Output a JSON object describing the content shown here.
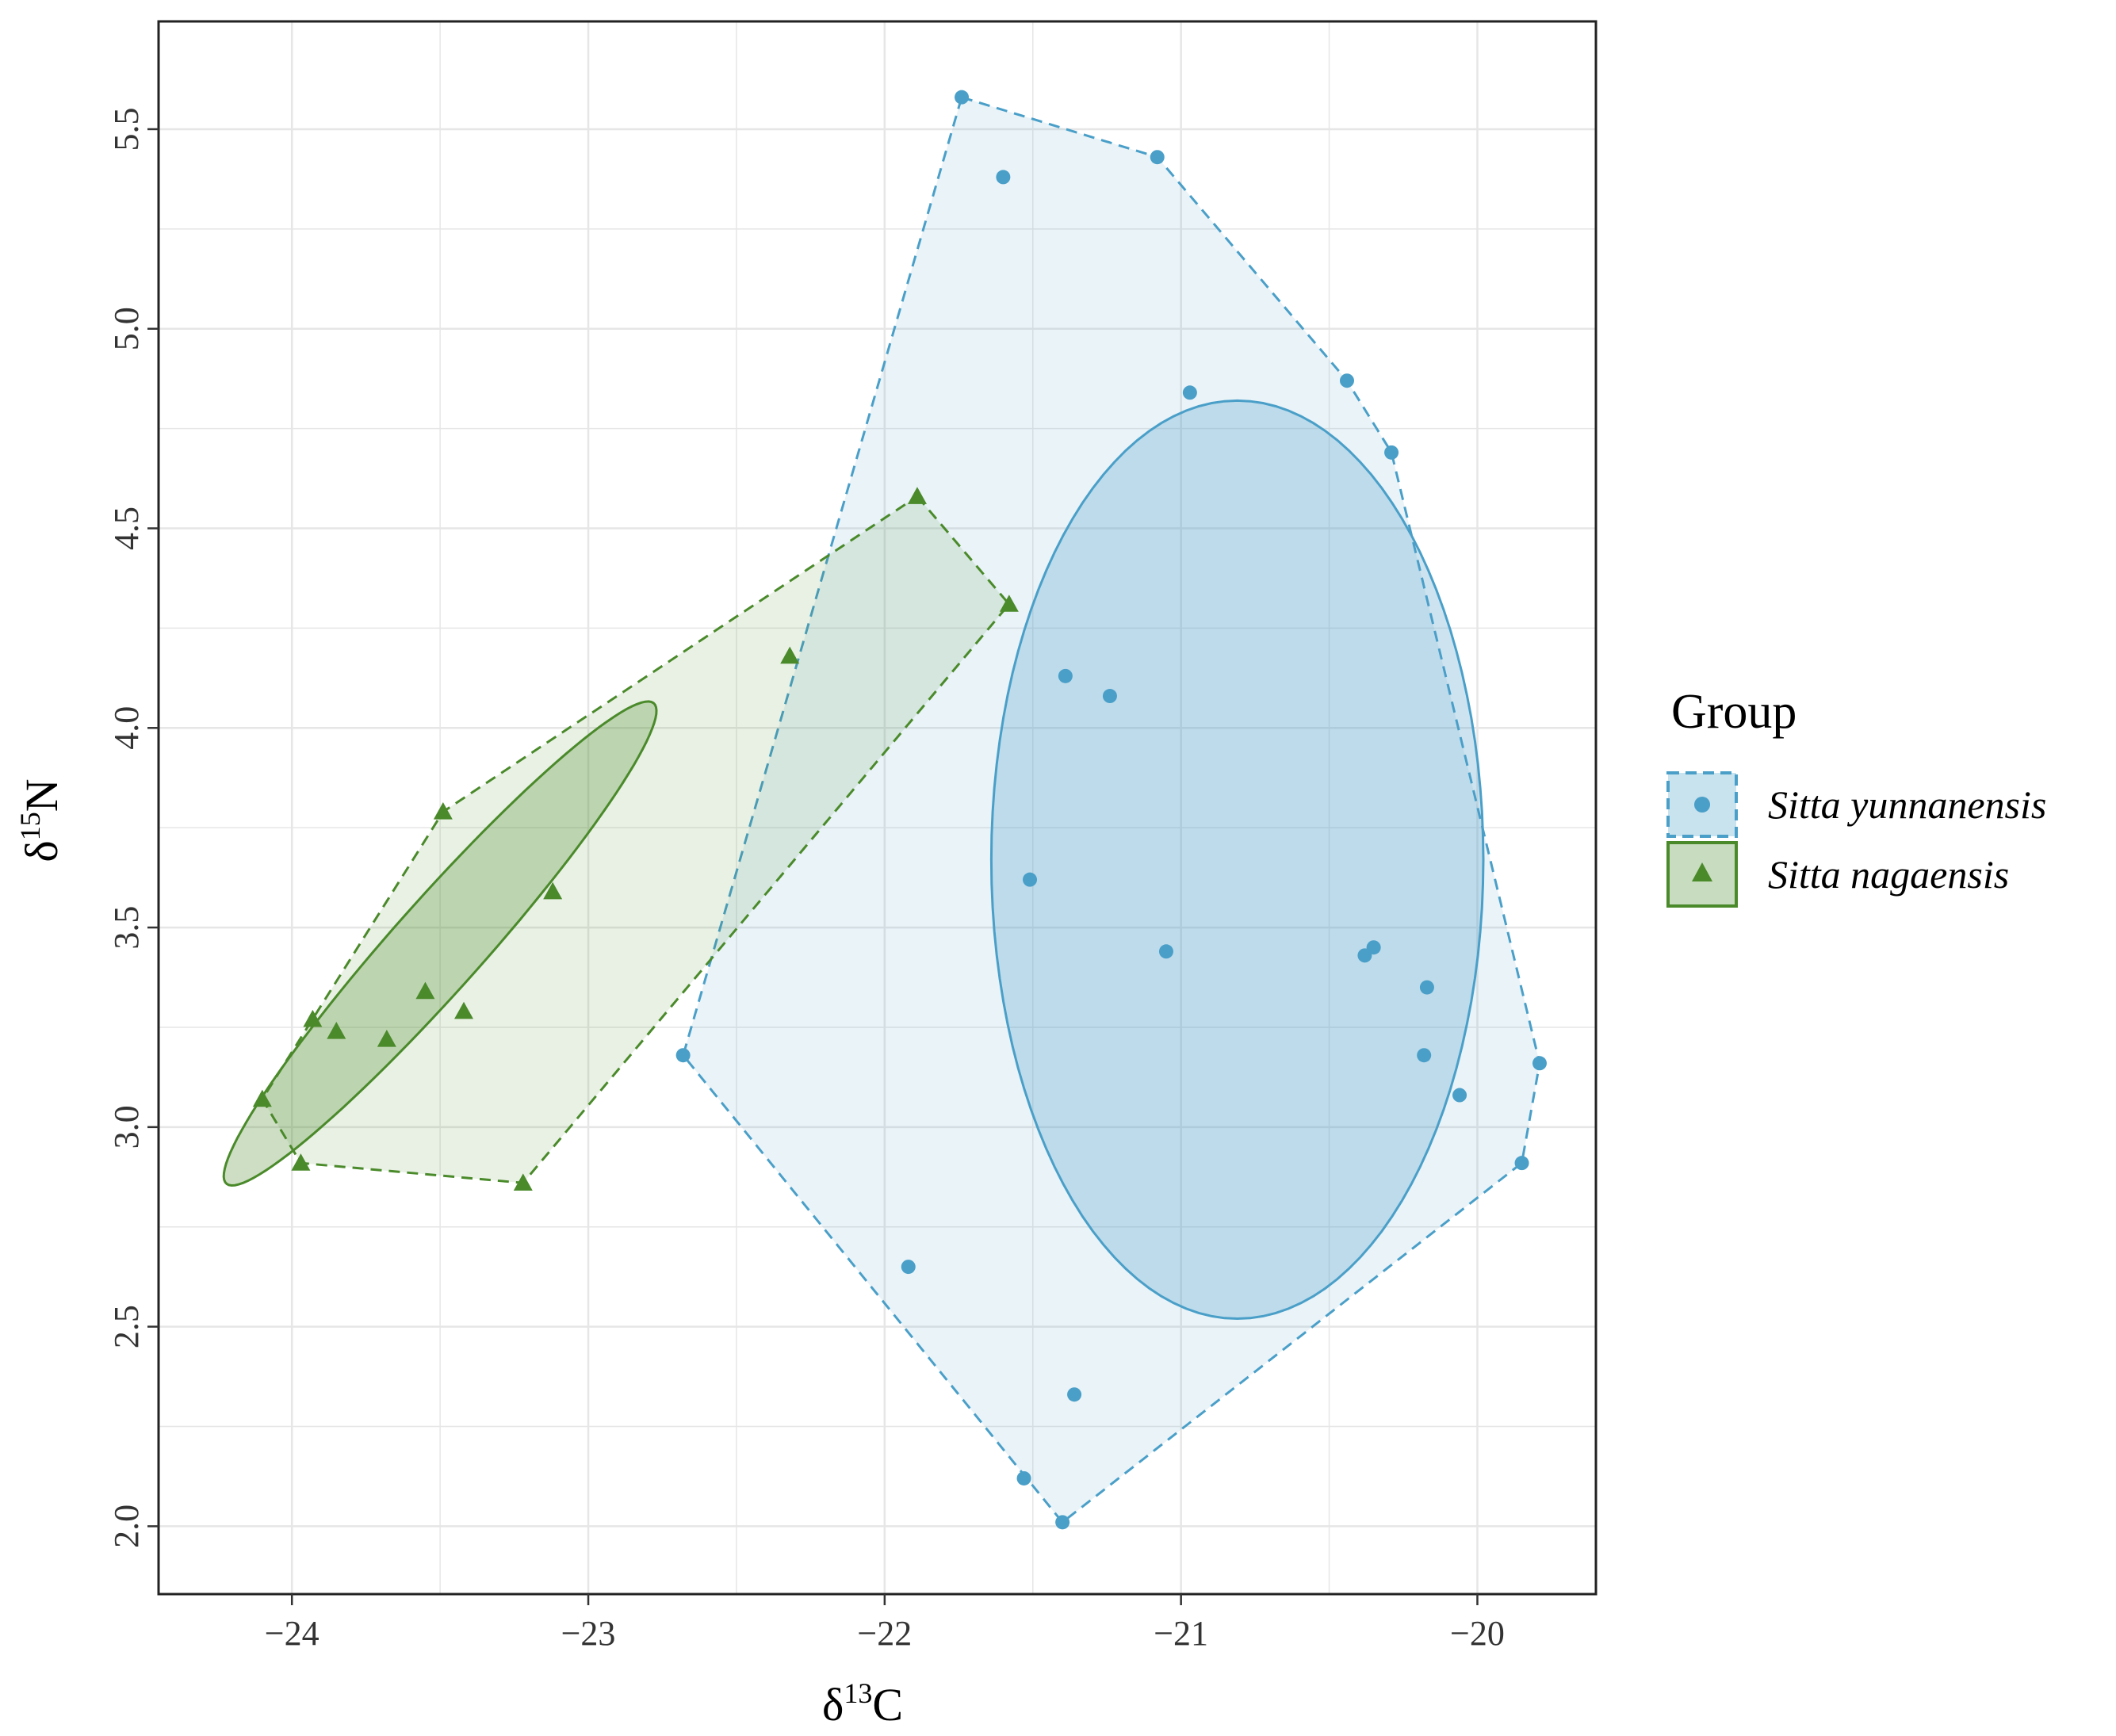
{
  "chart_data": {
    "type": "scatter",
    "title": "",
    "xlabel": {
      "symbol": "δ",
      "sup": "13",
      "element": "C"
    },
    "ylabel": {
      "symbol": "δ",
      "sup": "15",
      "element": "N"
    },
    "xlim": [
      -24.45,
      -19.6
    ],
    "ylim": [
      1.83,
      5.77
    ],
    "xticks": [
      -24,
      -23,
      -22,
      -21,
      -20
    ],
    "xtick_labels": [
      "−24",
      "−23",
      "−22",
      "−21",
      "−20"
    ],
    "yticks": [
      2.0,
      2.5,
      3.0,
      3.5,
      4.0,
      4.5,
      5.0,
      5.5
    ],
    "ytick_labels": [
      "2.0",
      "2.5",
      "3.0",
      "3.5",
      "4.0",
      "4.5",
      "5.0",
      "5.5"
    ],
    "grid": true,
    "legend": {
      "title": "Group",
      "position": "right"
    },
    "series": [
      {
        "name": "Sitta yunnanensis",
        "marker": "circle",
        "color": "#4a9fc8",
        "points": [
          {
            "x": -21.74,
            "y": 5.58
          },
          {
            "x": -21.6,
            "y": 5.38
          },
          {
            "x": -21.08,
            "y": 5.43
          },
          {
            "x": -20.44,
            "y": 4.87
          },
          {
            "x": -20.29,
            "y": 4.69
          },
          {
            "x": -20.97,
            "y": 4.84
          },
          {
            "x": -21.39,
            "y": 4.13
          },
          {
            "x": -21.24,
            "y": 4.08
          },
          {
            "x": -21.51,
            "y": 3.62
          },
          {
            "x": -21.05,
            "y": 3.44
          },
          {
            "x": -20.38,
            "y": 3.43
          },
          {
            "x": -20.35,
            "y": 3.45
          },
          {
            "x": -20.17,
            "y": 3.35
          },
          {
            "x": -20.18,
            "y": 3.18
          },
          {
            "x": -19.79,
            "y": 3.16
          },
          {
            "x": -20.06,
            "y": 3.08
          },
          {
            "x": -19.85,
            "y": 2.91
          },
          {
            "x": -22.68,
            "y": 3.18
          },
          {
            "x": -21.92,
            "y": 2.65
          },
          {
            "x": -21.36,
            "y": 2.33
          },
          {
            "x": -21.53,
            "y": 2.12
          },
          {
            "x": -21.4,
            "y": 2.01
          }
        ],
        "hull": [
          {
            "x": -21.74,
            "y": 5.58
          },
          {
            "x": -21.08,
            "y": 5.43
          },
          {
            "x": -20.44,
            "y": 4.87
          },
          {
            "x": -20.29,
            "y": 4.69
          },
          {
            "x": -19.79,
            "y": 3.16
          },
          {
            "x": -19.85,
            "y": 2.91
          },
          {
            "x": -21.4,
            "y": 2.01
          },
          {
            "x": -22.68,
            "y": 3.18
          }
        ],
        "ellipse": {
          "cx": -20.81,
          "cy": 3.67,
          "rx": 0.83,
          "ry": 1.15,
          "angle_deg": 0
        }
      },
      {
        "name": "Sitta nagaensis",
        "marker": "triangle",
        "color": "#4a8a2a",
        "points": [
          {
            "x": -21.89,
            "y": 4.58
          },
          {
            "x": -21.58,
            "y": 4.31
          },
          {
            "x": -22.32,
            "y": 4.18
          },
          {
            "x": -23.49,
            "y": 3.79
          },
          {
            "x": -23.12,
            "y": 3.59
          },
          {
            "x": -23.55,
            "y": 3.34
          },
          {
            "x": -23.42,
            "y": 3.29
          },
          {
            "x": -23.93,
            "y": 3.27
          },
          {
            "x": -23.85,
            "y": 3.24
          },
          {
            "x": -23.68,
            "y": 3.22
          },
          {
            "x": -24.1,
            "y": 3.07
          },
          {
            "x": -23.97,
            "y": 2.91
          },
          {
            "x": -23.22,
            "y": 2.86
          }
        ],
        "hull": [
          {
            "x": -21.89,
            "y": 4.58
          },
          {
            "x": -21.58,
            "y": 4.31
          },
          {
            "x": -23.22,
            "y": 2.86
          },
          {
            "x": -23.97,
            "y": 2.91
          },
          {
            "x": -24.1,
            "y": 3.07
          },
          {
            "x": -23.49,
            "y": 3.79
          }
        ],
        "ellipse": {
          "cx": -23.5,
          "cy": 3.46,
          "rx": 0.94,
          "ry": 0.13,
          "angle_deg": 39.5
        }
      }
    ]
  }
}
